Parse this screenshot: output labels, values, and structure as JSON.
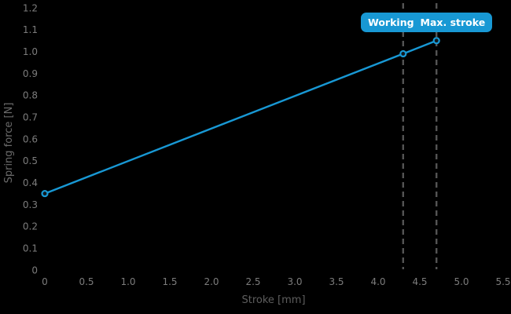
{
  "colors": {
    "background": "#000000",
    "accent_blue": "#1898d4",
    "marker_fill": "#12181d",
    "dashed_line": "#545454",
    "tick_label": "#7c7c7c",
    "axis_title": "#5e5e5e",
    "badge_text": "#ffffff"
  },
  "chart_data": {
    "type": "line",
    "title": "",
    "xlabel": "Stroke [mm]",
    "ylabel": "Spring force [N]",
    "xlim": [
      0,
      5.5
    ],
    "ylim": [
      0,
      1.2
    ],
    "grid": false,
    "legend": false,
    "xtick_values": [
      0,
      0.5,
      1.0,
      1.5,
      2.0,
      2.5,
      3.0,
      3.5,
      4.0,
      4.5,
      5.0,
      5.5
    ],
    "xtick_labels": [
      "0",
      "0.5",
      "1.0",
      "1.5",
      "2.0",
      "2.5",
      "3.0",
      "3.5",
      "4.0",
      "4.5",
      "5.0",
      "5.5"
    ],
    "ytick_values": [
      0,
      0.1,
      0.2,
      0.3,
      0.4,
      0.5,
      0.6,
      0.7,
      0.8,
      0.9,
      1.0,
      1.1,
      1.2
    ],
    "ytick_labels": [
      "0",
      "0.1",
      "0.2",
      "0.3",
      "0.4",
      "0.5",
      "0.6",
      "0.7",
      "0.8",
      "0.9",
      "1.0",
      "1.1",
      "1.2"
    ],
    "series": [
      {
        "name": "spring force",
        "color": "#1898d4",
        "marker": "circle",
        "points": [
          [
            0,
            0.35
          ],
          [
            4.3,
            0.99
          ],
          [
            4.7,
            1.05
          ]
        ]
      }
    ],
    "reference_lines": [
      {
        "x": 4.3,
        "label": "Working"
      },
      {
        "x": 4.7,
        "label": "Max. stroke"
      }
    ]
  }
}
